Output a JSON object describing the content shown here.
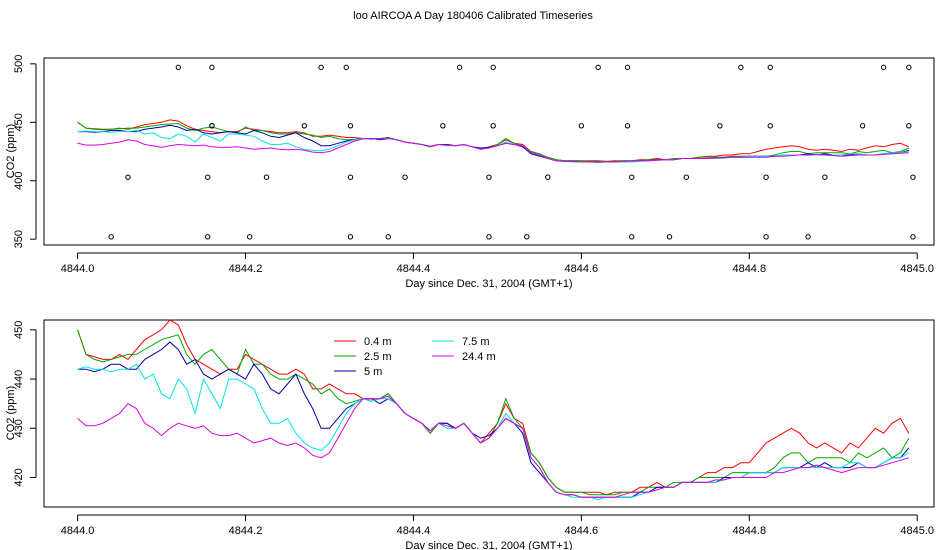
{
  "title": "loo AIRCOA A  Day 180406  Calibrated Timeseries",
  "chart_data": [
    {
      "type": "line",
      "xlabel": "Day since Dec. 31, 2004 (GMT+1)",
      "ylabel": "CO2 (ppm)",
      "xlim": [
        4843.96,
        4845.02
      ],
      "ylim": [
        345,
        505
      ],
      "xticks": [
        "4844.0",
        "4844.2",
        "4844.4",
        "4844.6",
        "4844.8",
        "4845.0"
      ],
      "yticks": [
        "350",
        "400",
        "450",
        "500"
      ],
      "grid": false,
      "legend": "none",
      "series": [
        {
          "color": "#ff0000",
          "ref": 0
        },
        {
          "color": "#00aa00",
          "ref": 1
        },
        {
          "color": "#0000aa",
          "ref": 2
        },
        {
          "color": "#00e5e5",
          "ref": 3
        },
        {
          "color": "#e000e0",
          "ref": 4
        }
      ],
      "markers": {
        "symbol": "open-circle",
        "x": [
          4844.04,
          4844.06,
          4844.12,
          4844.155,
          4844.155,
          4844.16,
          4844.16,
          4844.16,
          4844.205,
          4844.225,
          4844.27,
          4844.29,
          4844.32,
          4844.325,
          4844.325,
          4844.325,
          4844.37,
          4844.39,
          4844.435,
          4844.455,
          4844.49,
          4844.49,
          4844.495,
          4844.495,
          4844.535,
          4844.56,
          4844.6,
          4844.62,
          4844.655,
          4844.655,
          4844.66,
          4844.66,
          4844.705,
          4844.725,
          4844.765,
          4844.79,
          4844.82,
          4844.82,
          4844.825,
          4844.825,
          4844.87,
          4844.89,
          4844.935,
          4844.96,
          4844.99,
          4844.99,
          4844.995,
          4844.995
        ],
        "y": [
          352,
          403,
          497,
          352,
          403,
          447,
          497,
          447,
          352,
          403,
          447,
          497,
          497,
          447,
          403,
          352,
          352,
          403,
          447,
          497,
          352,
          403,
          447,
          497,
          352,
          403,
          447,
          497,
          447,
          497,
          403,
          352,
          352,
          403,
          447,
          497,
          352,
          403,
          447,
          497,
          352,
          403,
          447,
          497,
          447,
          497,
          403,
          352
        ]
      }
    },
    {
      "type": "line",
      "xlabel": "Day since Dec. 31, 2004 (GMT+1)",
      "ylabel": "CO2 (ppm)",
      "xlim": [
        4843.96,
        4845.02
      ],
      "ylim": [
        414,
        452
      ],
      "xticks": [
        "4844.0",
        "4844.2",
        "4844.4",
        "4844.6",
        "4844.8",
        "4845.0"
      ],
      "yticks": [
        "420",
        "430",
        "440",
        "450"
      ],
      "grid": false,
      "legend": "top-left",
      "x": [
        4844.0,
        4844.01,
        4844.02,
        4844.03,
        4844.04,
        4844.05,
        4844.06,
        4844.07,
        4844.08,
        4844.09,
        4844.1,
        4844.11,
        4844.12,
        4844.13,
        4844.14,
        4844.15,
        4844.16,
        4844.17,
        4844.18,
        4844.19,
        4844.2,
        4844.21,
        4844.22,
        4844.23,
        4844.24,
        4844.25,
        4844.26,
        4844.27,
        4844.28,
        4844.29,
        4844.3,
        4844.31,
        4844.32,
        4844.33,
        4844.34,
        4844.35,
        4844.36,
        4844.37,
        4844.38,
        4844.39,
        4844.4,
        4844.41,
        4844.42,
        4844.43,
        4844.44,
        4844.45,
        4844.46,
        4844.47,
        4844.48,
        4844.49,
        4844.5,
        4844.51,
        4844.52,
        4844.53,
        4844.54,
        4844.55,
        4844.56,
        4844.57,
        4844.58,
        4844.59,
        4844.6,
        4844.61,
        4844.62,
        4844.63,
        4844.64,
        4844.65,
        4844.66,
        4844.67,
        4844.68,
        4844.69,
        4844.7,
        4844.71,
        4844.72,
        4844.73,
        4844.74,
        4844.75,
        4844.76,
        4844.77,
        4844.78,
        4844.79,
        4844.8,
        4844.81,
        4844.82,
        4844.83,
        4844.84,
        4844.85,
        4844.86,
        4844.87,
        4844.88,
        4844.89,
        4844.9,
        4844.91,
        4844.92,
        4844.93,
        4844.94,
        4844.95,
        4844.96,
        4844.97,
        4844.98,
        4844.99
      ],
      "series": [
        {
          "name": "0.4 m",
          "color": "#ff0000",
          "values": [
            450,
            445,
            444.5,
            444,
            444,
            445,
            444,
            446,
            448,
            449,
            450,
            452,
            451,
            447,
            444,
            443,
            442,
            441,
            442,
            442,
            445,
            444,
            443,
            442,
            441,
            441,
            442,
            441,
            438,
            438,
            439,
            438,
            437,
            437,
            436,
            436,
            436,
            437,
            435,
            433,
            432,
            431,
            429,
            431,
            431,
            430,
            431,
            429,
            427,
            429,
            431,
            435,
            432,
            431,
            425,
            423,
            420,
            418,
            417,
            417,
            417,
            417,
            417,
            416.5,
            417,
            417,
            417,
            418,
            418,
            419,
            418,
            418,
            419,
            419,
            420,
            421,
            421,
            422,
            422,
            423,
            423,
            425,
            427,
            428,
            429,
            430,
            429,
            427,
            426,
            427,
            426,
            425,
            427,
            426,
            428,
            430,
            429,
            431,
            432,
            429
          ]
        },
        {
          "name": "2.5 m",
          "color": "#00aa00",
          "values": [
            450,
            445,
            444,
            443.5,
            444,
            444.5,
            445,
            445,
            446,
            447,
            448,
            448.5,
            449,
            445,
            443,
            445,
            446,
            444,
            442,
            441,
            446,
            443,
            443,
            441,
            440,
            440,
            441,
            440,
            439,
            437,
            438,
            436,
            435,
            435.5,
            436,
            435.5,
            436,
            437,
            435,
            433,
            432,
            431,
            429,
            431,
            431,
            430,
            431,
            429,
            427,
            428,
            431,
            436,
            432,
            430,
            425,
            423,
            420,
            418,
            417,
            417,
            417,
            416.5,
            416.5,
            416.5,
            416.5,
            417,
            417,
            417,
            418,
            418,
            418,
            419,
            419,
            419,
            420,
            420,
            420,
            420,
            421,
            421,
            421,
            421,
            421,
            422,
            424,
            425,
            425,
            423,
            424,
            424,
            424,
            424,
            423,
            425,
            424,
            425,
            426,
            424,
            425,
            428
          ]
        },
        {
          "name": "5 m",
          "color": "#0000aa",
          "values": [
            442,
            442,
            441.5,
            442,
            443,
            443,
            442,
            442,
            444,
            445,
            446,
            447.5,
            446,
            443,
            444,
            441,
            440,
            441,
            442,
            441,
            440,
            443,
            441,
            438,
            437,
            439,
            441,
            437,
            434,
            430,
            430,
            432,
            434,
            435,
            436,
            436,
            435,
            436,
            435,
            433,
            432,
            431,
            429.5,
            431,
            431,
            430,
            431,
            429,
            428,
            428.5,
            430,
            432,
            431,
            429,
            423,
            421,
            419,
            417,
            416.5,
            416.5,
            416,
            416,
            416,
            416,
            416,
            416,
            416,
            417,
            417,
            418,
            418,
            418,
            419,
            419,
            419,
            419,
            419,
            420,
            420,
            420,
            421,
            421,
            421,
            421,
            422,
            422,
            422,
            423,
            422,
            423,
            422,
            422,
            422,
            423,
            422,
            422,
            423,
            424,
            424,
            426
          ]
        },
        {
          "name": "7.5 m",
          "color": "#00e5e5",
          "values": [
            442,
            442.5,
            442,
            442,
            441.5,
            442,
            442,
            443,
            440,
            441,
            437,
            436,
            440,
            438,
            433,
            440,
            437,
            434,
            440,
            440,
            439,
            438,
            434,
            431,
            431,
            432,
            429,
            427,
            426,
            425.5,
            427,
            430,
            433,
            435,
            436,
            435.5,
            436,
            436,
            435,
            433,
            432,
            431,
            429.5,
            431,
            430,
            430,
            431,
            429,
            427,
            428,
            430,
            433,
            431,
            430,
            424,
            422,
            419,
            417,
            416.5,
            416,
            416,
            416,
            415.5,
            416,
            416,
            416,
            416,
            416.5,
            417,
            417.5,
            418,
            418,
            419,
            419,
            419,
            419,
            419,
            419.5,
            420,
            420,
            421,
            421,
            421,
            421,
            422,
            422,
            422,
            422,
            422,
            422,
            422,
            422,
            423,
            423,
            422,
            422,
            423,
            424,
            424,
            425
          ]
        },
        {
          "name": "24.4 m",
          "color": "#e000e0",
          "values": [
            432,
            430.5,
            430.5,
            431,
            432,
            433,
            435,
            434,
            431,
            430,
            428.5,
            430,
            431,
            430.5,
            430,
            430.5,
            429,
            428.5,
            428.5,
            429,
            428,
            427,
            427.5,
            428,
            427,
            426.5,
            427,
            426,
            424.5,
            424,
            425,
            428,
            431,
            434,
            436,
            436,
            436,
            436.5,
            435,
            433,
            432,
            431,
            429.5,
            431,
            430.5,
            430,
            431,
            429,
            427,
            428,
            430,
            432,
            431,
            430,
            424,
            422,
            419,
            417,
            416.5,
            416.5,
            416,
            416,
            416,
            416,
            416,
            416.5,
            417,
            417,
            417,
            417.5,
            418,
            418,
            419,
            419,
            419,
            419,
            419.5,
            419.5,
            420,
            420,
            420,
            420,
            420,
            421,
            421,
            421.5,
            422,
            422,
            422.5,
            422,
            421.5,
            421,
            421.5,
            422,
            422,
            422,
            422.5,
            423,
            423.5,
            424
          ]
        }
      ]
    }
  ]
}
